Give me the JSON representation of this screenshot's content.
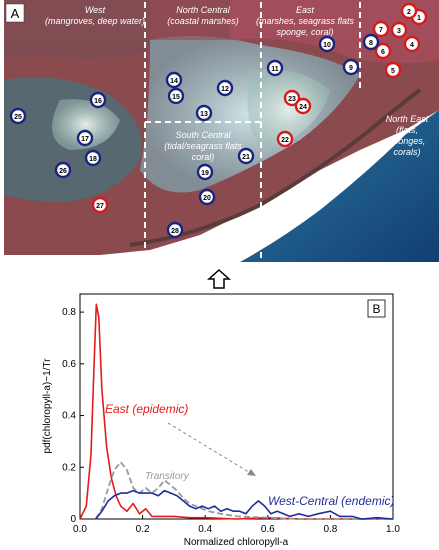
{
  "panel_a": {
    "label": "A",
    "regions": [
      {
        "name": "West",
        "sub": "(mangroves, deep water)"
      },
      {
        "name": "North Central",
        "sub": "(coastal marshes)"
      },
      {
        "name": "East",
        "sub1": "(marshes, seagrass flats",
        "sub2": "sponge, coral)"
      },
      {
        "name": "South Central",
        "sub1": "(tidal/seagrass flats",
        "sub2": "coral)"
      },
      {
        "name": "North East",
        "sub1": "(flats,",
        "sub2": "sponges,",
        "sub3": "corals)"
      }
    ],
    "stations_red": [
      "1",
      "2",
      "3",
      "4",
      "5",
      "6",
      "7",
      "22",
      "23",
      "24",
      "27"
    ],
    "stations_blue": [
      "8",
      "9",
      "10",
      "11",
      "12",
      "13",
      "14",
      "15",
      "16",
      "17",
      "18",
      "19",
      "20",
      "21",
      "25",
      "26",
      "28"
    ]
  },
  "colors": {
    "east": "#e31a1c",
    "west_central": "#1f2fa0",
    "transitory": "#999999",
    "station_red_ring": "#d7191c",
    "station_blue_ring": "#1a237e"
  },
  "chart_data": {
    "type": "line",
    "panel_label": "B",
    "xlabel": "Normalized chloropyll-a",
    "ylabel": "pdf(chloropyll-a)~1/Tr",
    "xlim": [
      0.0,
      1.0
    ],
    "ylim": [
      0.0,
      0.87
    ],
    "xticks": [
      "0.0",
      "0.2",
      "0.4",
      "0.6",
      "0.8",
      "1.0"
    ],
    "yticks": [
      "0",
      "0.2",
      "0.4",
      "0.6",
      "0.8"
    ],
    "series": [
      {
        "name": "East (epidemic)",
        "color": "#e31a1c",
        "style": "solid",
        "points": [
          [
            0.0,
            0.0
          ],
          [
            0.02,
            0.05
          ],
          [
            0.035,
            0.25
          ],
          [
            0.045,
            0.6
          ],
          [
            0.052,
            0.83
          ],
          [
            0.06,
            0.78
          ],
          [
            0.07,
            0.5
          ],
          [
            0.085,
            0.28
          ],
          [
            0.1,
            0.16
          ],
          [
            0.115,
            0.09
          ],
          [
            0.13,
            0.05
          ],
          [
            0.15,
            0.03
          ],
          [
            0.17,
            0.06
          ],
          [
            0.19,
            0.02
          ],
          [
            0.21,
            0.04
          ],
          [
            0.23,
            0.01
          ],
          [
            0.26,
            0.01
          ],
          [
            0.3,
            0.01
          ],
          [
            0.35,
            0.005
          ],
          [
            0.4,
            0.005
          ],
          [
            0.5,
            0.0
          ],
          [
            0.6,
            0.005
          ],
          [
            0.7,
            0.0
          ],
          [
            1.0,
            0.0
          ]
        ]
      },
      {
        "name": "Transitory",
        "color": "#999999",
        "style": "dashed",
        "points": [
          [
            0.05,
            0.0
          ],
          [
            0.07,
            0.04
          ],
          [
            0.09,
            0.12
          ],
          [
            0.11,
            0.19
          ],
          [
            0.13,
            0.22
          ],
          [
            0.15,
            0.19
          ],
          [
            0.17,
            0.12
          ],
          [
            0.19,
            0.1
          ],
          [
            0.21,
            0.12
          ],
          [
            0.23,
            0.1
          ],
          [
            0.25,
            0.12
          ],
          [
            0.27,
            0.15
          ],
          [
            0.29,
            0.13
          ],
          [
            0.31,
            0.11
          ],
          [
            0.33,
            0.08
          ],
          [
            0.35,
            0.06
          ],
          [
            0.37,
            0.05
          ],
          [
            0.39,
            0.04
          ],
          [
            0.41,
            0.03
          ],
          [
            0.45,
            0.02
          ],
          [
            0.5,
            0.01
          ],
          [
            0.6,
            0.005
          ],
          [
            0.7,
            0.0
          ],
          [
            1.0,
            0.0
          ]
        ]
      },
      {
        "name": "West-Central (endemic)",
        "color": "#1f2fa0",
        "style": "solid",
        "points": [
          [
            0.05,
            0.0
          ],
          [
            0.07,
            0.03
          ],
          [
            0.09,
            0.07
          ],
          [
            0.11,
            0.09
          ],
          [
            0.13,
            0.1
          ],
          [
            0.15,
            0.1
          ],
          [
            0.17,
            0.11
          ],
          [
            0.19,
            0.1
          ],
          [
            0.21,
            0.1
          ],
          [
            0.23,
            0.1
          ],
          [
            0.25,
            0.09
          ],
          [
            0.27,
            0.11
          ],
          [
            0.29,
            0.1
          ],
          [
            0.31,
            0.09
          ],
          [
            0.33,
            0.07
          ],
          [
            0.35,
            0.05
          ],
          [
            0.37,
            0.04
          ],
          [
            0.39,
            0.05
          ],
          [
            0.41,
            0.04
          ],
          [
            0.43,
            0.05
          ],
          [
            0.45,
            0.03
          ],
          [
            0.47,
            0.04
          ],
          [
            0.49,
            0.03
          ],
          [
            0.51,
            0.03
          ],
          [
            0.53,
            0.02
          ],
          [
            0.55,
            0.05
          ],
          [
            0.57,
            0.07
          ],
          [
            0.59,
            0.05
          ],
          [
            0.61,
            0.02
          ],
          [
            0.63,
            0.03
          ],
          [
            0.65,
            0.02
          ],
          [
            0.67,
            0.01
          ],
          [
            0.7,
            0.02
          ],
          [
            0.73,
            0.01
          ],
          [
            0.76,
            0.02
          ],
          [
            0.8,
            0.03
          ],
          [
            0.83,
            0.01
          ],
          [
            0.87,
            0.01
          ],
          [
            0.9,
            0.0
          ],
          [
            0.95,
            0.005
          ],
          [
            1.0,
            0.0
          ]
        ]
      }
    ],
    "annotations": [
      {
        "text": "East (epidemic)",
        "color": "#e31a1c"
      },
      {
        "text": "Transitory",
        "color": "#999999"
      },
      {
        "text": "West-Central (endemic)",
        "color": "#1f2fa0"
      }
    ]
  }
}
